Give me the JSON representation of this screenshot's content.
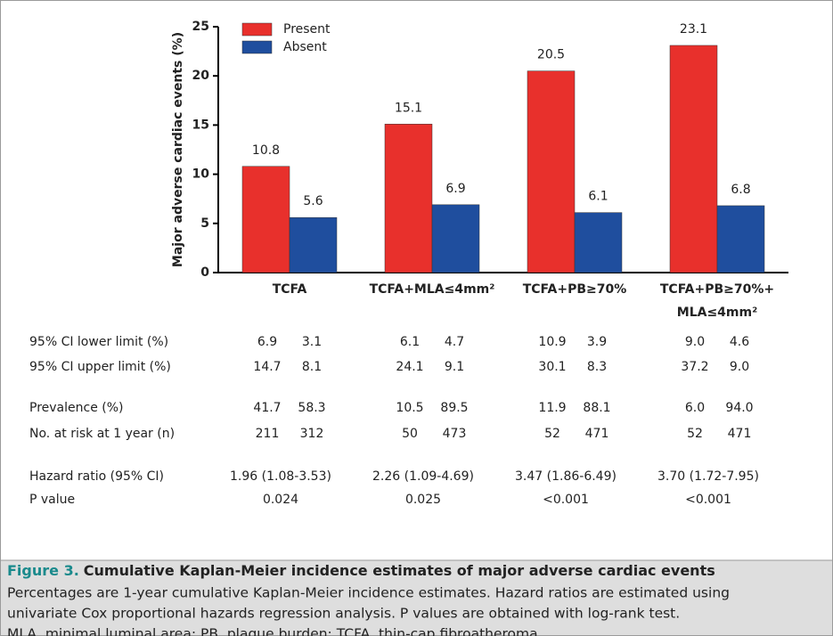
{
  "chart_data": {
    "type": "bar",
    "ylabel": "Major adverse cardiac events (%)",
    "categories": [
      "TCFA",
      "TCFA+MLA≤4mm²",
      "TCFA+PB≥70%",
      "TCFA+PB≥70%+ MLA≤4mm²"
    ],
    "series": [
      {
        "name": "Present",
        "color": "#e8302c",
        "values": [
          10.8,
          15.1,
          20.5,
          23.1
        ]
      },
      {
        "name": "Absent",
        "color": "#1f4e9e",
        "values": [
          5.6,
          6.9,
          6.1,
          6.8
        ]
      }
    ],
    "ylim": [
      0,
      25
    ],
    "yticks": [
      0,
      5,
      10,
      15,
      20,
      25
    ],
    "legend": "upper-left"
  },
  "table": {
    "rows": [
      {
        "label": "95% CI lower limit (%)",
        "values": [
          [
            "6.9",
            "3.1"
          ],
          [
            "6.1",
            "4.7"
          ],
          [
            "10.9",
            "3.9"
          ],
          [
            "9.0",
            "4.6"
          ]
        ]
      },
      {
        "label": "95% CI upper limit (%)",
        "values": [
          [
            "14.7",
            "8.1"
          ],
          [
            "24.1",
            "9.1"
          ],
          [
            "30.1",
            "8.3"
          ],
          [
            "37.2",
            "9.0"
          ]
        ]
      },
      {
        "label": "Prevalence (%)",
        "values": [
          [
            "41.7",
            "58.3"
          ],
          [
            "10.5",
            "89.5"
          ],
          [
            "11.9",
            "88.1"
          ],
          [
            "6.0",
            "94.0"
          ]
        ]
      },
      {
        "label": "No. at risk at 1 year (n)",
        "values": [
          [
            "211",
            "312"
          ],
          [
            "50",
            "473"
          ],
          [
            "52",
            "471"
          ],
          [
            "52",
            "471"
          ]
        ]
      },
      {
        "label": "Hazard ratio (95% CI)",
        "values": [
          "1.96 (1.08-3.53)",
          "2.26 (1.09-4.69)",
          "3.47 (1.86-6.49)",
          "3.70 (1.72-7.95)"
        ]
      },
      {
        "label": "P value",
        "values": [
          "0.024",
          "0.025",
          "<0.001",
          "<0.001"
        ]
      }
    ]
  },
  "caption": {
    "label": "Figure 3.",
    "title": "Cumulative Kaplan-Meier incidence estimates of major adverse cardiac events",
    "lines": [
      "Percentages are 1-year cumulative Kaplan-Meier incidence estimates. Hazard ratios are estimated using",
      "univariate Cox proportional hazards regression analysis. P values are obtained with log-rank test.",
      "MLA, minimal luminal area; PB, plaque burden; TCFA, thin-cap fibroatheroma."
    ]
  }
}
